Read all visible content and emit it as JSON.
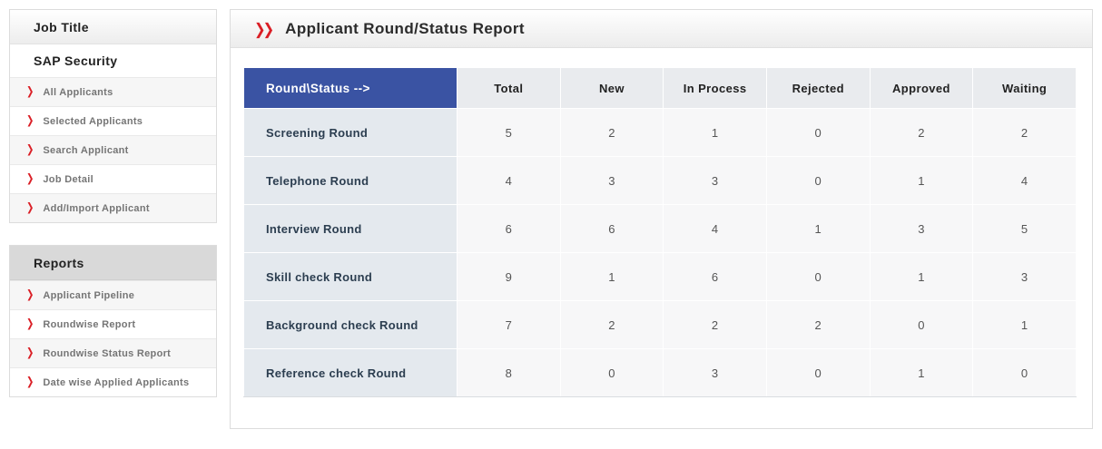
{
  "colors": {
    "accent_red": "#da1f26",
    "header_blue": "#3a53a3"
  },
  "icons": {
    "chevron_right": "❯",
    "double_chevron_right": "❯❯"
  },
  "sidebar": {
    "job_title_header": "Job Title",
    "job_name": "SAP Security",
    "items": [
      {
        "label": "All Applicants"
      },
      {
        "label": "Selected Applicants"
      },
      {
        "label": "Search Applicant"
      },
      {
        "label": "Job Detail"
      },
      {
        "label": "Add/Import Applicant"
      }
    ],
    "reports_header": "Reports",
    "report_items": [
      {
        "label": "Applicant Pipeline"
      },
      {
        "label": "Roundwise Report"
      },
      {
        "label": "Roundwise Status Report"
      },
      {
        "label": "Date wise Applied Applicants"
      }
    ]
  },
  "main": {
    "title": "Applicant Round/Status Report"
  },
  "report_table": {
    "corner_header": "Round\\Status -->",
    "columns": [
      "Total",
      "New",
      "In Process",
      "Rejected",
      "Approved",
      "Waiting"
    ],
    "rows": [
      {
        "label": "Screening Round",
        "values": [
          5,
          2,
          1,
          0,
          2,
          2
        ]
      },
      {
        "label": "Telephone Round",
        "values": [
          4,
          3,
          3,
          0,
          1,
          4
        ]
      },
      {
        "label": "Interview Round",
        "values": [
          6,
          6,
          4,
          1,
          3,
          5
        ]
      },
      {
        "label": "Skill check Round",
        "values": [
          9,
          1,
          6,
          0,
          1,
          3
        ]
      },
      {
        "label": "Background check Round",
        "values": [
          7,
          2,
          2,
          2,
          0,
          1
        ]
      },
      {
        "label": "Reference check Round",
        "values": [
          8,
          0,
          3,
          0,
          1,
          0
        ]
      }
    ]
  }
}
